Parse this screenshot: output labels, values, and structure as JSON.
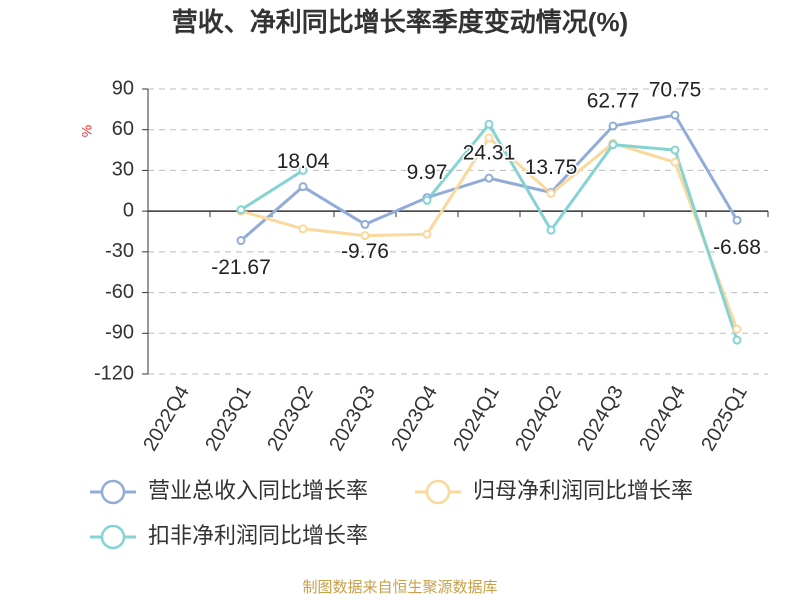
{
  "chart_data": {
    "type": "line",
    "title": "营收、净利同比增长率季度变动情况(%)",
    "y_label": "%",
    "categories": [
      "2022Q4",
      "2023Q1",
      "2023Q2",
      "2023Q3",
      "2023Q4",
      "2024Q1",
      "2024Q2",
      "2024Q3",
      "2024Q4",
      "2025Q1"
    ],
    "series": [
      {
        "name": "营业总收入同比增长率",
        "color": "#91acd8",
        "values": [
          null,
          -21.67,
          18.04,
          -9.76,
          9.97,
          24.31,
          13.75,
          62.77,
          70.75,
          -6.68
        ],
        "labels": true
      },
      {
        "name": "归母净利润同比增长率",
        "color": "#fbd89c",
        "values": [
          null,
          0,
          -13,
          -18,
          -17,
          54,
          13,
          50,
          36,
          -87
        ],
        "labels": false
      },
      {
        "name": "扣非净利润同比增长率",
        "color": "#86d3d3",
        "values": [
          null,
          1,
          30,
          null,
          8,
          64,
          -14,
          49,
          45,
          -95
        ],
        "labels": false
      }
    ],
    "ylim": [
      -120,
      90
    ],
    "yticks": [
      -120,
      -90,
      -60,
      -30,
      0,
      30,
      60,
      90
    ],
    "grid": true,
    "source": "制图数据来自恒生聚源数据库"
  }
}
